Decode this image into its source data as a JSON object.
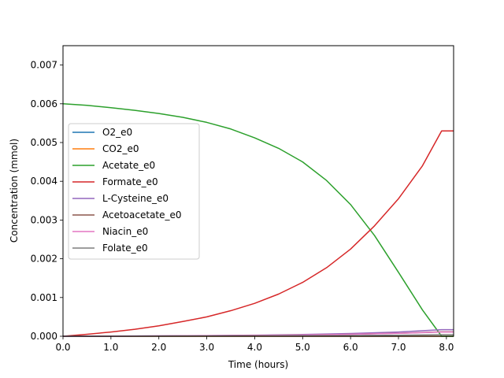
{
  "chart_data": {
    "type": "line",
    "title": "",
    "xlabel": "Time (hours)",
    "ylabel": "Concentration (mmol)",
    "xlim": [
      0,
      8.15
    ],
    "ylim": [
      0,
      0.0075
    ],
    "xticks": [
      0,
      1,
      2,
      3,
      4,
      5,
      6,
      7,
      8
    ],
    "xtick_labels": [
      "0.0",
      "1.0",
      "2.0",
      "3.0",
      "4.0",
      "5.0",
      "6.0",
      "7.0",
      "8.0"
    ],
    "yticks": [
      0,
      0.001,
      0.002,
      0.003,
      0.004,
      0.005,
      0.006,
      0.007
    ],
    "ytick_labels": [
      "0.000",
      "0.001",
      "0.002",
      "0.003",
      "0.004",
      "0.005",
      "0.006",
      "0.007"
    ],
    "grid": false,
    "legend_position": "center-left",
    "series": [
      {
        "name": "O2_e0",
        "color": "#1f77b4",
        "x": [
          0,
          8.15
        ],
        "y": [
          0,
          0
        ]
      },
      {
        "name": "CO2_e0",
        "color": "#ff7f0e",
        "x": [
          0,
          8.15
        ],
        "y": [
          0,
          0
        ]
      },
      {
        "name": "Acetate_e0",
        "color": "#2ca02c",
        "x": [
          0,
          0.5,
          1.0,
          1.5,
          2.0,
          2.5,
          3.0,
          3.5,
          4.0,
          4.5,
          5.0,
          5.5,
          6.0,
          6.5,
          7.0,
          7.5,
          7.9,
          8.15
        ],
        "y": [
          0.006,
          0.00596,
          0.0059,
          0.00583,
          0.00575,
          0.00565,
          0.00552,
          0.00535,
          0.00512,
          0.00485,
          0.0045,
          0.00402,
          0.0034,
          0.0026,
          0.00165,
          0.00068,
          0.0,
          0.0
        ]
      },
      {
        "name": "Formate_e0",
        "color": "#d62728",
        "x": [
          0,
          0.5,
          1.0,
          1.5,
          2.0,
          2.5,
          3.0,
          3.5,
          4.0,
          4.5,
          5.0,
          5.5,
          6.0,
          6.5,
          7.0,
          7.5,
          7.9,
          8.15
        ],
        "y": [
          0.0,
          5e-05,
          0.00011,
          0.00018,
          0.00027,
          0.00038,
          0.0005,
          0.00066,
          0.00085,
          0.00109,
          0.00139,
          0.00177,
          0.00225,
          0.00285,
          0.00355,
          0.0044,
          0.0053,
          0.0053
        ]
      },
      {
        "name": "L-Cysteine_e0",
        "color": "#9467bd",
        "x": [
          0,
          1,
          2,
          3,
          4,
          5,
          6,
          7,
          7.9,
          8.15
        ],
        "y": [
          0.0,
          4e-06,
          1e-05,
          1.8e-05,
          2.8e-05,
          4.5e-05,
          7e-05,
          0.00011,
          0.00017,
          0.00017
        ]
      },
      {
        "name": "Acetoacetate_e0",
        "color": "#8c564b",
        "x": [
          0,
          1,
          2,
          3,
          4,
          5,
          6,
          7,
          7.9,
          8.15
        ],
        "y": [
          0.0,
          3e-06,
          8e-06,
          1.4e-05,
          2.2e-05,
          3.4e-05,
          5.2e-05,
          7.8e-05,
          0.000115,
          0.000115
        ]
      },
      {
        "name": "Niacin_e0",
        "color": "#e377c2",
        "x": [
          0,
          1,
          2,
          3,
          4,
          5,
          6,
          7,
          7.9,
          8.15
        ],
        "y": [
          0.0,
          3e-06,
          7e-06,
          1.3e-05,
          2e-05,
          3.2e-05,
          5e-05,
          7.5e-05,
          0.00011,
          0.00011
        ]
      },
      {
        "name": "Folate_e0",
        "color": "#7f7f7f",
        "x": [
          0,
          1,
          2,
          3,
          4,
          5,
          6,
          7,
          7.9,
          8.15
        ],
        "y": [
          0.0,
          1e-06,
          3e-06,
          5e-06,
          8e-06,
          1.2e-05,
          1.8e-05,
          2.8e-05,
          4e-05,
          4e-05
        ]
      }
    ]
  }
}
